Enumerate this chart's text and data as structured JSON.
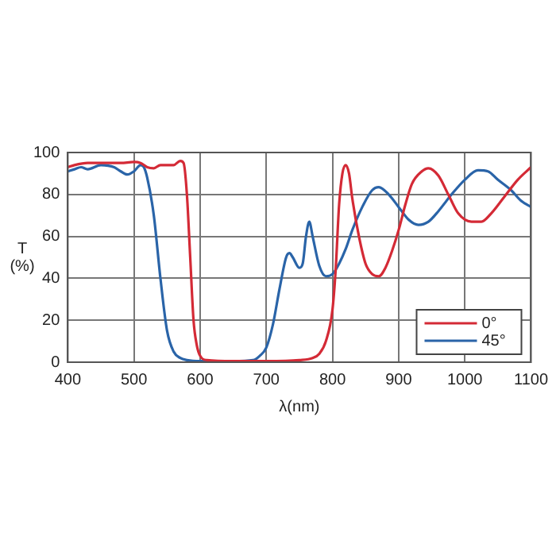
{
  "chart_data": {
    "type": "line",
    "xlabel": "λ(nm)",
    "ylabel": "T\n(%)",
    "xlim": [
      400,
      1100
    ],
    "xticks": [
      400,
      500,
      600,
      700,
      800,
      900,
      1000,
      1100
    ],
    "ylim": [
      0,
      100
    ],
    "yticks": [
      0,
      20,
      40,
      60,
      80,
      100
    ],
    "grid": true,
    "legend": "bottom right",
    "marker": "none",
    "line_style": "solid",
    "series": [
      {
        "name": "0°",
        "color": "#d42a36",
        "x": [
          400,
          410,
          430,
          450,
          480,
          500,
          510,
          520,
          530,
          540,
          560,
          570,
          575,
          580,
          585,
          590,
          595,
          600,
          610,
          650,
          700,
          750,
          770,
          780,
          790,
          800,
          805,
          810,
          815,
          820,
          825,
          830,
          840,
          850,
          860,
          870,
          880,
          890,
          900,
          910,
          920,
          935,
          945,
          960,
          975,
          990,
          1010,
          1025,
          1040,
          1060,
          1080,
          1100
        ],
        "values": [
          93,
          94,
          95,
          95,
          95,
          95.5,
          95,
          93,
          92.5,
          94,
          94,
          96,
          95,
          80,
          50,
          20,
          8,
          3,
          1,
          0.5,
          0.5,
          1,
          2,
          4,
          10,
          25,
          45,
          75,
          90,
          94,
          90,
          78,
          60,
          47,
          42,
          41,
          45,
          53,
          63,
          75,
          85,
          91,
          92.5,
          89,
          80,
          71,
          67,
          67,
          71,
          79,
          87,
          93
        ]
      },
      {
        "name": "45°",
        "color": "#2a64a8",
        "x": [
          400,
          410,
          420,
          430,
          450,
          470,
          480,
          490,
          500,
          510,
          515,
          520,
          530,
          540,
          550,
          560,
          570,
          580,
          600,
          650,
          680,
          690,
          700,
          710,
          720,
          730,
          735,
          740,
          750,
          755,
          760,
          765,
          770,
          780,
          790,
          800,
          810,
          820,
          830,
          845,
          860,
          870,
          885,
          900,
          915,
          930,
          945,
          960,
          980,
          1000,
          1020,
          1035,
          1050,
          1070,
          1085,
          1100
        ],
        "values": [
          91,
          92,
          93,
          92,
          94,
          93,
          91,
          89.5,
          91,
          94,
          93,
          88,
          70,
          40,
          15,
          5,
          2,
          1,
          0.5,
          0.5,
          1,
          3,
          7,
          18,
          35,
          50,
          52,
          50,
          45,
          47,
          60,
          67,
          60,
          46,
          41,
          42,
          47,
          54,
          63,
          74,
          82,
          83.5,
          80,
          74,
          68,
          65.5,
          67,
          72,
          80,
          87,
          91.5,
          91,
          87,
          82,
          77,
          74
        ]
      }
    ]
  }
}
